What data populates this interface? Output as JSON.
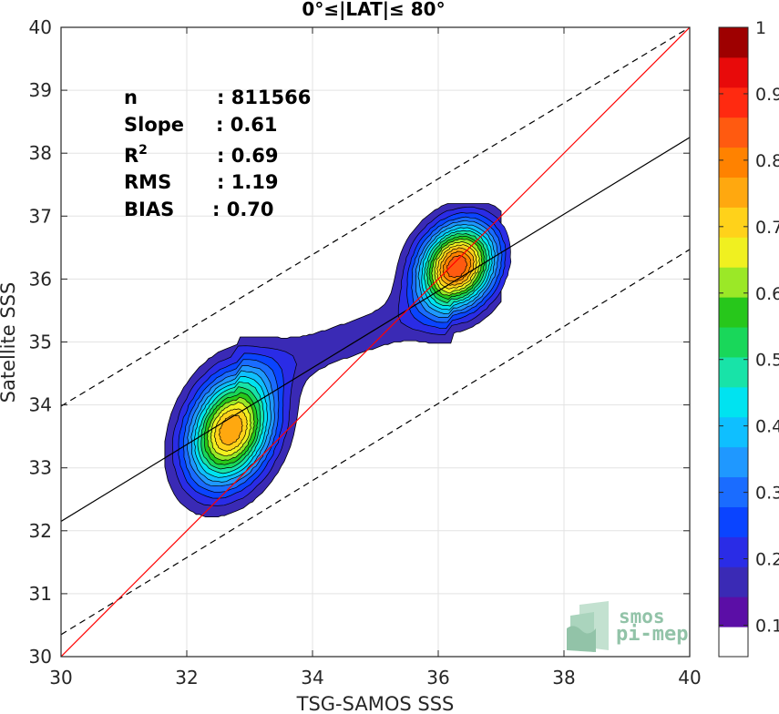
{
  "chart_data": {
    "type": "contour",
    "title": "0°≤|LAT|≤ 80°",
    "xlabel": "TSG-SAMOS SSS",
    "ylabel": "Satellite SSS",
    "xlim": [
      30,
      40
    ],
    "ylim": [
      30,
      40
    ],
    "xticks": [
      30,
      32,
      34,
      36,
      38,
      40
    ],
    "yticks": [
      30,
      31,
      32,
      33,
      34,
      35,
      36,
      37,
      38,
      39,
      40
    ],
    "grid": true,
    "stats": [
      {
        "label": "n",
        "value": ": 811566"
      },
      {
        "label": "Slope",
        "value": ": 0.61"
      },
      {
        "label": "R",
        "sup": "2",
        "value": ": 0.69"
      },
      {
        "label": "RMS",
        "value": ": 1.19"
      },
      {
        "label": "BIAS",
        "value": ": 0.70"
      }
    ],
    "lines": {
      "identity": {
        "x": [
          30,
          40
        ],
        "y": [
          30,
          40
        ],
        "color": "#ff0000"
      },
      "regression": {
        "x": [
          30,
          40
        ],
        "y": [
          32.15,
          38.25
        ],
        "color": "#000000"
      },
      "upper_bound": {
        "x": [
          30,
          40
        ],
        "y": [
          33.98,
          40.0
        ],
        "color": "#000000",
        "style": "dashed"
      },
      "lower_bound": {
        "x": [
          30,
          40
        ],
        "y": [
          30.35,
          36.47
        ],
        "color": "#000000",
        "style": "dashed"
      }
    },
    "density_peaks": [
      {
        "x": 32.7,
        "y": 33.6,
        "value": 0.75
      },
      {
        "x": 36.3,
        "y": 36.2,
        "value": 0.85
      }
    ],
    "colorbar": {
      "ticks": [
        "0.1",
        "0.2",
        "0.3",
        "0.4",
        "0.5",
        "0.6",
        "0.7",
        "0.8",
        "0.9",
        "1"
      ],
      "levels": [
        "#ffffff",
        "#5b0ea6",
        "#3a2ab5",
        "#2a2ce6",
        "#0a44ff",
        "#1a6cff",
        "#1f98ff",
        "#0fbfff",
        "#00e3f0",
        "#18e3a8",
        "#19d75a",
        "#27c71b",
        "#9be827",
        "#f0f020",
        "#ffd21a",
        "#ffa80f",
        "#ff8200",
        "#ff5a10",
        "#ff2a10",
        "#e80a0a",
        "#9e0000"
      ]
    },
    "watermark": [
      "smos",
      "pi-mep"
    ]
  }
}
